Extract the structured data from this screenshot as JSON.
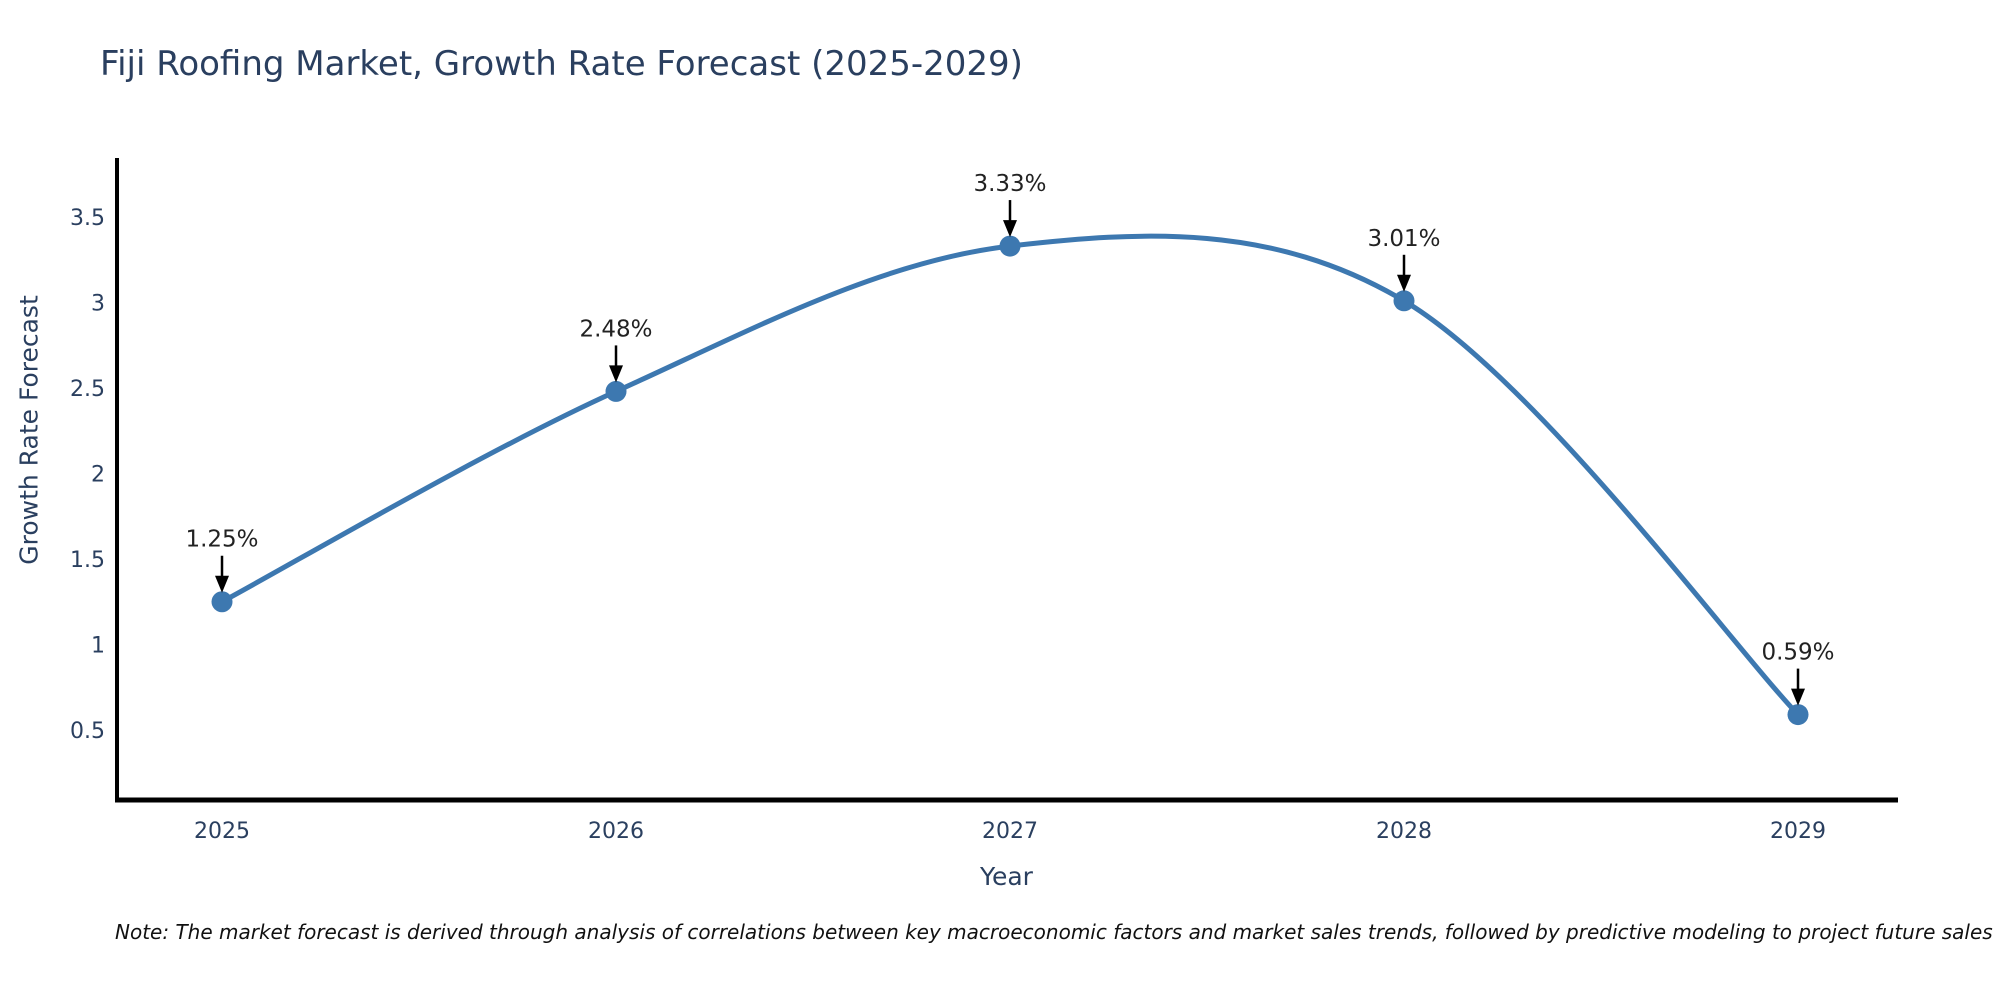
{
  "title": "Fiji Roofing Market, Growth Rate Forecast (2025-2029)",
  "note": "Note: The market forecast is derived through analysis of correlations between key macroeconomic factors and market sales trends, followed by predictive modeling to project future sales",
  "chart_data": {
    "type": "line",
    "title": "Fiji Roofing Market, Growth Rate Forecast (2025-2029)",
    "xlabel": "Year",
    "ylabel": "Growth Rate Forecast",
    "x": [
      2025,
      2026,
      2027,
      2028,
      2029
    ],
    "values": [
      1.25,
      2.48,
      3.33,
      3.01,
      0.59
    ],
    "point_labels": [
      "1.25%",
      "2.48%",
      "3.33%",
      "3.01%",
      "0.59%"
    ],
    "xticks": [
      "2025",
      "2026",
      "2027",
      "2028",
      "2029"
    ],
    "yticks": [
      "0.5",
      "1",
      "1.5",
      "2",
      "2.5",
      "3",
      "3.5"
    ],
    "ytick_values": [
      0.5,
      1,
      1.5,
      2,
      2.5,
      3,
      3.5
    ],
    "xlim": [
      2024.7284,
      2029.2538
    ],
    "ylim": [
      0.0906,
      3.845
    ],
    "grid": false,
    "legend": "none",
    "curve": "spline",
    "line_color": "#3d78b0",
    "marker_color": "#3d78b0",
    "axis_color": "#000000",
    "tick_color": "#2a3f5f",
    "annotation_color": "#222222",
    "background": "#ffffff"
  }
}
